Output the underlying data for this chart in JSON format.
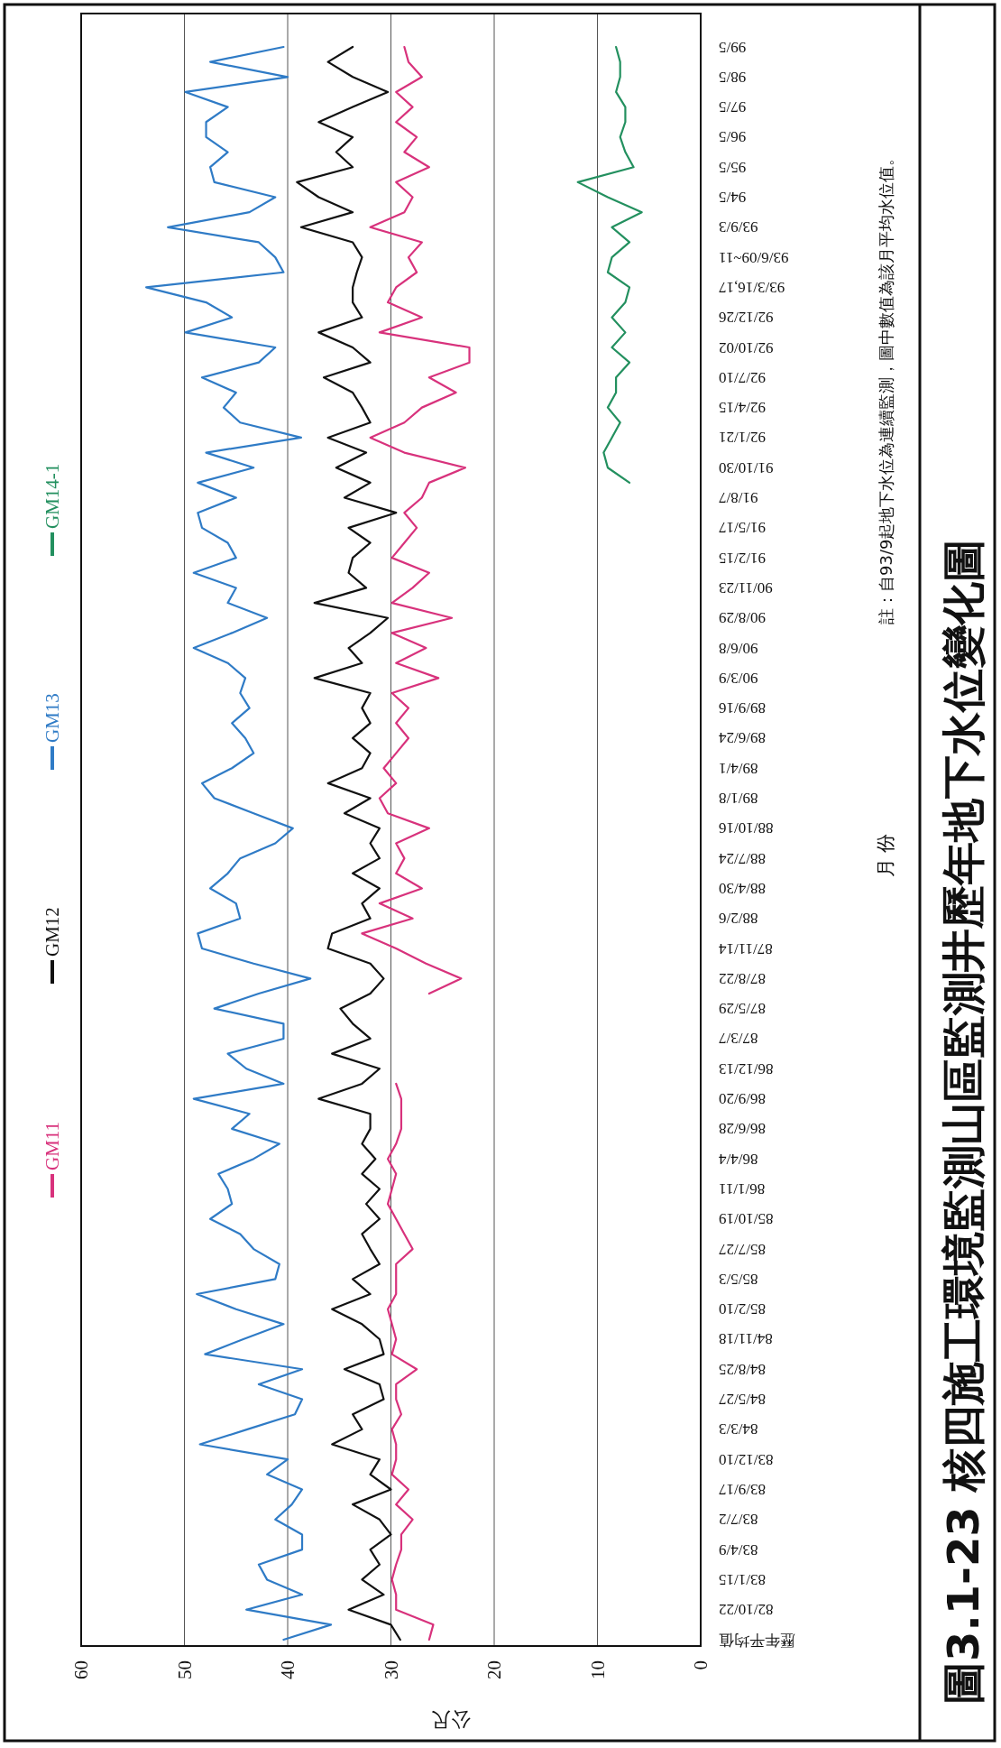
{
  "chart_data": {
    "type": "line",
    "orientation": "horizontal",
    "title": "圖3.1-23 核四施工環境監測山區監測井歷年地下水位變化圖",
    "xlabel": "公尺",
    "ylabel": "月 份",
    "annotations": [
      "註：自93/9起地下水位為連續監測，圖中數值為該月平均水位值。"
    ],
    "categories": [
      "99/5",
      null,
      "98/5",
      null,
      "97/5",
      null,
      "96/5",
      null,
      "95/5",
      null,
      "94/5",
      null,
      "93/9/3",
      null,
      "93/6/09~11",
      null,
      "93/3/16,17",
      null,
      "92/12/26",
      null,
      "92/10/02",
      null,
      "92/7/10",
      null,
      "92/4/15",
      null,
      "92/1/21",
      null,
      "91/10/30",
      null,
      "91/8/7",
      null,
      "91/5/17",
      null,
      "91/2/15",
      null,
      "90/11/23",
      null,
      "90/8/29",
      null,
      "90/6/8",
      null,
      "90/3/9",
      null,
      "89/9/16",
      null,
      "89/6/24",
      null,
      "89/4/1",
      null,
      "89/1/8",
      null,
      "88/10/16",
      null,
      "88/7/24",
      null,
      "88/4/30",
      null,
      "88/2/6",
      null,
      "87/11/14",
      null,
      "87/8/22",
      null,
      "87/5/29",
      null,
      "87/3/7",
      null,
      "86/12/13",
      null,
      "86/9/20",
      null,
      "86/6/28",
      null,
      "86/4/4",
      null,
      "86/1/11",
      null,
      "85/10/19",
      null,
      "85/7/27",
      null,
      "85/5/3",
      null,
      "85/2/10",
      null,
      "84/11/18",
      null,
      "84/8/25",
      null,
      "84/5/27",
      null,
      "84/3/3",
      null,
      "83/12/10",
      null,
      "83/9/17",
      null,
      "83/7/2",
      null,
      "83/4/9",
      null,
      "83/1/15",
      null,
      "82/10/22",
      null,
      "歷年平均值"
    ],
    "series": [
      {
        "name": "GM11",
        "color": "#d8327c",
        "values": [
          28.7,
          28.3,
          27.0,
          29.5,
          27.9,
          29.5,
          27.5,
          28.7,
          26.3,
          29.5,
          27.9,
          28.7,
          32.0,
          27.0,
          28.3,
          27.5,
          29.5,
          30.3,
          27.0,
          31.1,
          22.4,
          22.4,
          26.3,
          23.7,
          27.0,
          28.7,
          32.0,
          28.7,
          22.8,
          26.3,
          27.0,
          28.7,
          27.5,
          28.7,
          29.9,
          26.3,
          27.9,
          29.9,
          24.1,
          29.9,
          26.6,
          29.5,
          25.4,
          29.9,
          28.3,
          29.5,
          28.3,
          29.5,
          30.7,
          29.5,
          31.1,
          30.3,
          26.3,
          29.5,
          28.7,
          29.5,
          27.0,
          31.1,
          27.9,
          32.8,
          29.5,
          26.6,
          23.2,
          26.3,
          null,
          null,
          null,
          null,
          null,
          29.5,
          29.0,
          29.0,
          29.0,
          29.5,
          30.3,
          29.5,
          29.9,
          30.3,
          29.5,
          28.7,
          27.9,
          29.5,
          29.5,
          29.5,
          30.3,
          29.9,
          29.5,
          29.9,
          27.5,
          29.5,
          29.5,
          29.0,
          29.9,
          29.5,
          29.5,
          29.9,
          28.3,
          29.5,
          27.9,
          29.0,
          29.0,
          29.5,
          29.9,
          29.5,
          29.5,
          25.9,
          26.3
        ]
      },
      {
        "name": "GM12",
        "color": "#111111",
        "values": [
          33.7,
          36.1,
          33.7,
          30.3,
          33.7,
          37.0,
          33.7,
          35.3,
          33.7,
          39.1,
          37.0,
          33.7,
          38.7,
          33.7,
          32.8,
          33.3,
          33.7,
          33.7,
          32.8,
          37.0,
          33.7,
          32.0,
          36.5,
          33.7,
          32.8,
          32.0,
          36.1,
          32.4,
          35.3,
          32.0,
          34.5,
          29.5,
          34.1,
          32.0,
          33.7,
          34.1,
          32.4,
          37.4,
          30.3,
          32.0,
          34.1,
          32.8,
          37.4,
          32.0,
          32.8,
          32.0,
          33.7,
          32.0,
          32.8,
          36.1,
          32.0,
          34.5,
          31.1,
          32.0,
          31.1,
          33.7,
          31.1,
          32.8,
          32.0,
          35.7,
          36.1,
          32.0,
          30.7,
          32.0,
          34.9,
          33.7,
          32.0,
          35.7,
          31.1,
          32.8,
          37.0,
          32.0,
          32.0,
          32.8,
          31.5,
          32.8,
          31.1,
          32.4,
          31.1,
          32.8,
          32.0,
          31.1,
          33.7,
          32.0,
          35.7,
          32.8,
          31.1,
          30.7,
          34.5,
          31.1,
          30.7,
          33.7,
          32.8,
          35.7,
          31.1,
          32.0,
          30.0,
          33.7,
          31.1,
          30.0,
          32.0,
          31.1,
          32.8,
          30.7,
          34.1,
          30.0,
          29.1
        ]
      },
      {
        "name": "GM13",
        "color": "#2f7bc6",
        "values": [
          40.4,
          47.5,
          40.0,
          49.9,
          45.8,
          47.9,
          47.9,
          45.8,
          47.5,
          47.1,
          41.2,
          43.7,
          51.6,
          42.8,
          41.2,
          40.4,
          53.7,
          47.9,
          45.4,
          49.9,
          41.2,
          42.8,
          48.3,
          45.0,
          46.2,
          44.6,
          38.7,
          47.9,
          43.3,
          48.7,
          45.0,
          48.7,
          48.3,
          45.8,
          45.0,
          49.1,
          45.0,
          45.8,
          42.0,
          45.4,
          49.1,
          45.8,
          44.1,
          44.6,
          43.7,
          45.4,
          44.1,
          43.3,
          45.4,
          48.3,
          47.1,
          43.3,
          39.5,
          41.2,
          44.6,
          45.8,
          47.5,
          45.0,
          44.6,
          48.7,
          48.3,
          43.3,
          37.8,
          42.8,
          47.1,
          40.4,
          40.4,
          45.8,
          44.0,
          40.4,
          49.1,
          43.7,
          45.4,
          40.8,
          43.3,
          46.7,
          45.8,
          45.4,
          47.5,
          44.6,
          43.3,
          40.8,
          41.2,
          48.8,
          45.0,
          40.4,
          44.3,
          48.0,
          38.6,
          42.8,
          38.6,
          39.3,
          43.9,
          48.5,
          40.0,
          42.0,
          38.6,
          39.6,
          41.2,
          38.6,
          38.6,
          42.8,
          42.0,
          38.6,
          44.0,
          35.8,
          40.4
        ]
      },
      {
        "name": "GM14-1",
        "color": "#23905f",
        "values": [
          8.2,
          7.8,
          7.8,
          8.2,
          7.3,
          7.3,
          7.8,
          7.3,
          6.5,
          11.9,
          9.0,
          5.7,
          8.6,
          6.9,
          8.6,
          9.0,
          6.9,
          7.3,
          8.6,
          7.3,
          8.6,
          6.9,
          8.2,
          8.2,
          9.0,
          7.8,
          8.6,
          9.4,
          9.0,
          6.9,
          null,
          null,
          null,
          null,
          null,
          null,
          null,
          null,
          null,
          null,
          null,
          null,
          null,
          null,
          null,
          null,
          null,
          null,
          null,
          null,
          null,
          null,
          null,
          null,
          null,
          null,
          null,
          null,
          null,
          null,
          null,
          null,
          null,
          null,
          null,
          null,
          null,
          null,
          null,
          null,
          null,
          null,
          null,
          null,
          null,
          null,
          null,
          null,
          null,
          null,
          null,
          null,
          null,
          null,
          null,
          null,
          null,
          null,
          null,
          null,
          null,
          null,
          null,
          null,
          null,
          null,
          null,
          null,
          null,
          null,
          null,
          null,
          null,
          null,
          null,
          null,
          null
        ]
      }
    ],
    "xlim": [
      60,
      0
    ],
    "xticks": [
      60,
      50,
      40,
      30,
      20,
      10,
      0
    ],
    "grid": "x",
    "legend": "left",
    "line_style": "solid"
  }
}
